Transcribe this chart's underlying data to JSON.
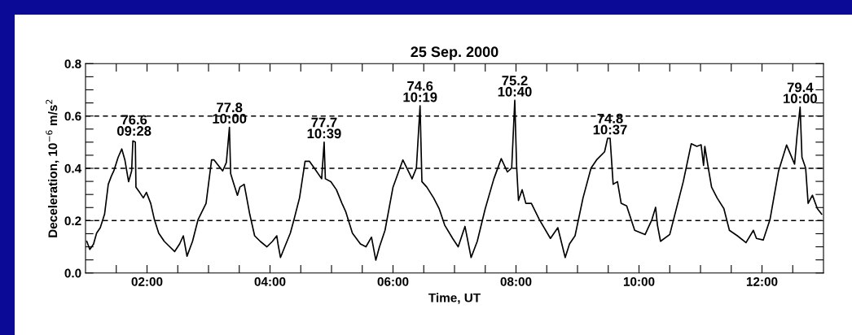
{
  "chart_data": {
    "type": "line",
    "title": "25 Sep. 2000",
    "xlabel": "Time, UT",
    "ylabel": "Deceleration, 10$^{−6}$ m/s$^{2}$",
    "xlim": [
      1,
      13
    ],
    "xticks": [
      {
        "value": 1.5,
        "label": null
      },
      {
        "value": 2,
        "label": "02:00"
      },
      {
        "value": 2.5,
        "label": null
      },
      {
        "value": 3,
        "label": null
      },
      {
        "value": 3.5,
        "label": null
      },
      {
        "value": 4,
        "label": "04:00"
      },
      {
        "value": 4.5,
        "label": null
      },
      {
        "value": 5,
        "label": null
      },
      {
        "value": 5.5,
        "label": null
      },
      {
        "value": 6,
        "label": "06:00"
      },
      {
        "value": 6.5,
        "label": null
      },
      {
        "value": 7,
        "label": null
      },
      {
        "value": 7.5,
        "label": null
      },
      {
        "value": 8,
        "label": "08:00"
      },
      {
        "value": 8.5,
        "label": null
      },
      {
        "value": 9,
        "label": null
      },
      {
        "value": 9.5,
        "label": null
      },
      {
        "value": 10,
        "label": "10:00"
      },
      {
        "value": 10.5,
        "label": null
      },
      {
        "value": 11,
        "label": null
      },
      {
        "value": 11.5,
        "label": null
      },
      {
        "value": 12,
        "label": "12:00"
      },
      {
        "value": 12.5,
        "label": null
      }
    ],
    "ylim": [
      0,
      0.8
    ],
    "yticks": [
      {
        "value": 0,
        "label": "0.0"
      },
      {
        "value": 0.05,
        "label": null
      },
      {
        "value": 0.1,
        "label": null
      },
      {
        "value": 0.15,
        "label": null
      },
      {
        "value": 0.2,
        "label": "0.2"
      },
      {
        "value": 0.25,
        "label": null
      },
      {
        "value": 0.3,
        "label": null
      },
      {
        "value": 0.35,
        "label": null
      },
      {
        "value": 0.4,
        "label": "0.4"
      },
      {
        "value": 0.45,
        "label": null
      },
      {
        "value": 0.5,
        "label": null
      },
      {
        "value": 0.55,
        "label": null
      },
      {
        "value": 0.6,
        "label": "0.6"
      },
      {
        "value": 0.65,
        "label": null
      },
      {
        "value": 0.7,
        "label": null
      },
      {
        "value": 0.75,
        "label": null
      },
      {
        "value": 0.8,
        "label": "0.8"
      }
    ],
    "grid": false,
    "marker": "none",
    "line_style": "solid",
    "ref_lines": [
      {
        "axis": "y",
        "value": 0.2,
        "line_style": "dashed",
        "color": "#000000"
      },
      {
        "axis": "y",
        "value": 0.4,
        "line_style": "dashed",
        "color": "#000000"
      },
      {
        "axis": "y",
        "value": 0.6,
        "line_style": "dashed",
        "color": "#000000"
      }
    ],
    "annotations": [
      {
        "text": "76.6\n09:28",
        "x": 1.79,
        "y": 0.51
      },
      {
        "text": "77.8\n10:00",
        "x": 3.34,
        "y": 0.557
      },
      {
        "text": "77.7\n10:39",
        "x": 4.88,
        "y": 0.5
      },
      {
        "text": "74.6\n10:19",
        "x": 6.44,
        "y": 0.639
      },
      {
        "text": "75.2\n10:40",
        "x": 7.98,
        "y": 0.66
      },
      {
        "text": "74.8\n10:37",
        "x": 9.53,
        "y": 0.515
      },
      {
        "text": "79.4\n10:00",
        "x": 12.62,
        "y": 0.634
      }
    ],
    "series": [
      {
        "color": "#000000",
        "x": [
          1.02,
          1.07,
          1.13,
          1.18,
          1.24,
          1.31,
          1.37,
          1.42,
          1.46,
          1.53,
          1.59,
          1.64,
          1.7,
          1.75,
          1.77,
          1.81,
          1.82,
          1.88,
          1.94,
          1.99,
          2.06,
          2.12,
          2.19,
          2.28,
          2.37,
          2.45,
          2.53,
          2.59,
          2.65,
          2.74,
          2.83,
          2.96,
          3.05,
          3.09,
          3.23,
          3.29,
          3.34,
          3.36,
          3.4,
          3.47,
          3.51,
          3.58,
          3.67,
          3.75,
          3.84,
          3.95,
          4.04,
          4.11,
          4.13,
          4.17,
          4.24,
          4.33,
          4.39,
          4.48,
          4.57,
          4.64,
          4.72,
          4.84,
          4.88,
          4.9,
          4.99,
          5.08,
          5.17,
          5.23,
          5.34,
          5.47,
          5.56,
          5.65,
          5.72,
          5.78,
          5.87,
          6.0,
          6.16,
          6.31,
          6.38,
          6.44,
          6.47,
          6.55,
          6.66,
          6.75,
          6.84,
          6.97,
          7.06,
          7.17,
          7.27,
          7.37,
          7.5,
          7.64,
          7.76,
          7.86,
          7.93,
          7.98,
          8.01,
          8.04,
          8.1,
          8.16,
          8.25,
          8.38,
          8.56,
          8.68,
          8.8,
          8.87,
          8.96,
          9.09,
          9.22,
          9.31,
          9.44,
          9.49,
          9.53,
          9.58,
          9.65,
          9.71,
          9.8,
          9.93,
          10.1,
          10.21,
          10.27,
          10.3,
          10.35,
          10.5,
          10.72,
          10.85,
          10.94,
          11.01,
          11.05,
          11.07,
          11.12,
          11.18,
          11.27,
          11.38,
          11.47,
          11.6,
          11.74,
          11.86,
          11.91,
          12.02,
          12.13,
          12.27,
          12.4,
          12.53,
          12.57,
          12.62,
          12.65,
          12.71,
          12.75,
          12.82,
          12.9,
          12.97
        ],
        "values": [
          0.121,
          0.09,
          0.11,
          0.152,
          0.173,
          0.225,
          0.339,
          0.37,
          0.39,
          0.442,
          0.474,
          0.432,
          0.349,
          0.39,
          0.505,
          0.5,
          0.328,
          0.308,
          0.287,
          0.308,
          0.266,
          0.204,
          0.152,
          0.121,
          0.1,
          0.082,
          0.111,
          0.142,
          0.064,
          0.121,
          0.204,
          0.266,
          0.432,
          0.432,
          0.39,
          0.422,
          0.557,
          0.38,
          0.349,
          0.297,
          0.328,
          0.339,
          0.225,
          0.142,
          0.121,
          0.1,
          0.121,
          0.142,
          0.111,
          0.059,
          0.1,
          0.152,
          0.204,
          0.287,
          0.427,
          0.427,
          0.401,
          0.36,
          0.5,
          0.36,
          0.349,
          0.318,
          0.266,
          0.235,
          0.152,
          0.111,
          0.1,
          0.137,
          0.049,
          0.1,
          0.163,
          0.328,
          0.432,
          0.36,
          0.401,
          0.639,
          0.349,
          0.328,
          0.287,
          0.246,
          0.183,
          0.132,
          0.1,
          0.178,
          0.059,
          0.121,
          0.246,
          0.36,
          0.437,
          0.386,
          0.401,
          0.66,
          0.407,
          0.277,
          0.318,
          0.266,
          0.266,
          0.204,
          0.132,
          0.173,
          0.059,
          0.111,
          0.142,
          0.287,
          0.401,
          0.432,
          0.463,
          0.515,
          0.515,
          0.339,
          0.349,
          0.266,
          0.256,
          0.163,
          0.147,
          0.204,
          0.251,
          0.183,
          0.121,
          0.147,
          0.349,
          0.494,
          0.484,
          0.49,
          0.411,
          0.484,
          0.411,
          0.328,
          0.287,
          0.246,
          0.163,
          0.142,
          0.116,
          0.163,
          0.132,
          0.126,
          0.204,
          0.39,
          0.489,
          0.416,
          0.525,
          0.634,
          0.442,
          0.401,
          0.266,
          0.297,
          0.246,
          0.225
        ]
      }
    ]
  }
}
